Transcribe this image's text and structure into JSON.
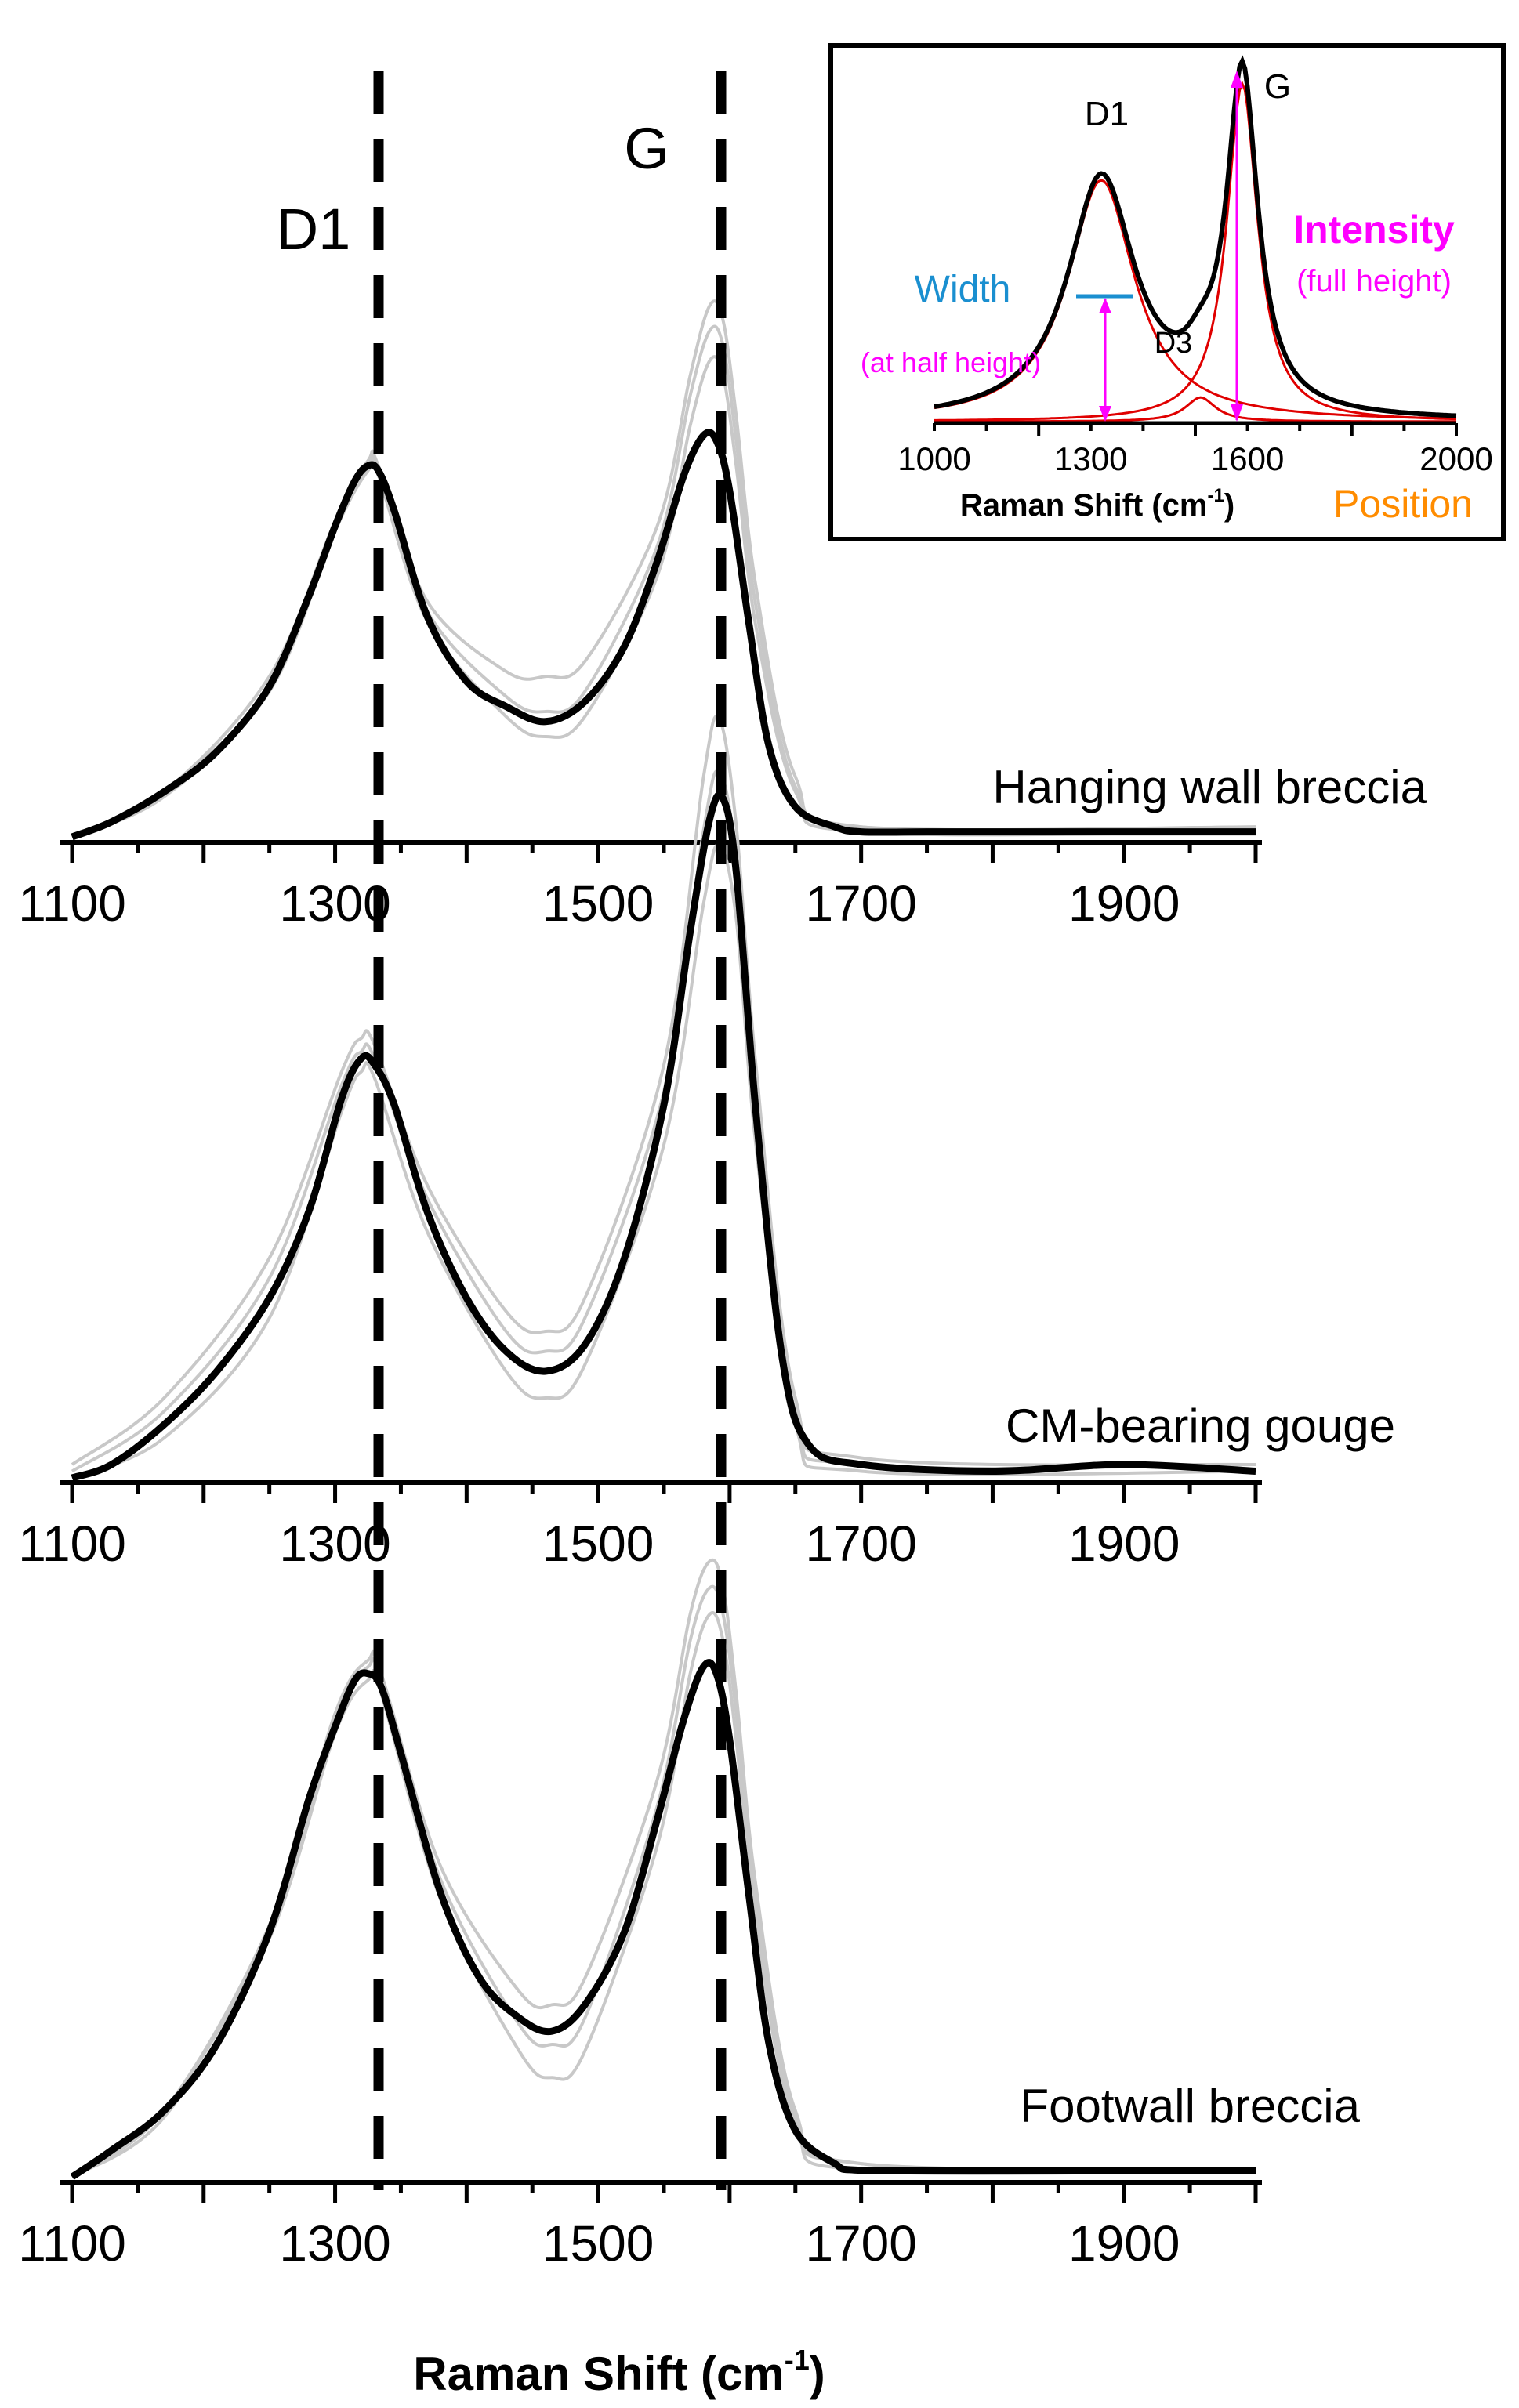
{
  "chart_data": [
    {
      "type": "line",
      "panel": "hanging-wall",
      "xlim": [
        1100,
        2000
      ],
      "xticks": [
        1100,
        1300,
        1500,
        1700,
        1900
      ],
      "sample_label": "Hanging wall breccia",
      "peak_labels": [
        "D1",
        "G"
      ],
      "peak_positions": [
        1330,
        1590
      ],
      "series": [
        {
          "role": "mean",
          "color": "#000000",
          "x": [
            1100,
            1130,
            1170,
            1210,
            1250,
            1280,
            1300,
            1315,
            1325,
            1333,
            1345,
            1370,
            1400,
            1430,
            1460,
            1490,
            1520,
            1545,
            1565,
            1580,
            1590,
            1600,
            1615,
            1630,
            1650,
            1680,
            1700,
            1750,
            1800,
            1900,
            2000
          ],
          "y": [
            0.0,
            0.03,
            0.09,
            0.17,
            0.3,
            0.48,
            0.62,
            0.71,
            0.74,
            0.73,
            0.65,
            0.44,
            0.31,
            0.26,
            0.23,
            0.27,
            0.38,
            0.55,
            0.72,
            0.8,
            0.79,
            0.69,
            0.42,
            0.18,
            0.06,
            0.02,
            0.01,
            0.01,
            0.01,
            0.01,
            0.01
          ]
        },
        {
          "role": "spectrum",
          "color": "#c8c8c8",
          "x": [
            1100,
            1170,
            1250,
            1300,
            1325,
            1333,
            1370,
            1430,
            1460,
            1490,
            1545,
            1570,
            1585,
            1595,
            1605,
            1620,
            1650,
            1700,
            2000
          ],
          "y": [
            0.0,
            0.09,
            0.32,
            0.63,
            0.75,
            0.74,
            0.47,
            0.33,
            0.32,
            0.35,
            0.62,
            0.92,
            1.06,
            1.03,
            0.84,
            0.5,
            0.12,
            0.02,
            0.02
          ]
        },
        {
          "role": "spectrum",
          "color": "#c8c8c8",
          "x": [
            1100,
            1170,
            1250,
            1300,
            1325,
            1333,
            1370,
            1430,
            1460,
            1490,
            1545,
            1570,
            1585,
            1595,
            1605,
            1620,
            1650,
            1700,
            2000
          ],
          "y": [
            0.0,
            0.08,
            0.29,
            0.61,
            0.73,
            0.72,
            0.43,
            0.24,
            0.2,
            0.24,
            0.52,
            0.82,
            0.95,
            0.92,
            0.74,
            0.42,
            0.09,
            0.01,
            0.01
          ]
        },
        {
          "role": "spectrum",
          "color": "#c8c8c8",
          "x": [
            1100,
            1170,
            1250,
            1300,
            1325,
            1333,
            1370,
            1430,
            1460,
            1490,
            1545,
            1570,
            1585,
            1595,
            1605,
            1620,
            1650,
            1700,
            2000
          ],
          "y": [
            0.0,
            0.09,
            0.3,
            0.62,
            0.74,
            0.73,
            0.45,
            0.28,
            0.25,
            0.29,
            0.58,
            0.88,
            1.01,
            0.98,
            0.79,
            0.46,
            0.1,
            0.02,
            0.02
          ]
        }
      ]
    },
    {
      "type": "line",
      "panel": "gouge",
      "xlim": [
        1100,
        2000
      ],
      "xticks": [
        1100,
        1300,
        1500,
        1700,
        1900
      ],
      "sample_label": "CM-bearing gouge",
      "series": [
        {
          "role": "mean",
          "color": "#000000",
          "x": [
            1100,
            1130,
            1170,
            1210,
            1250,
            1280,
            1305,
            1320,
            1330,
            1345,
            1370,
            1400,
            1430,
            1460,
            1490,
            1520,
            1550,
            1570,
            1585,
            1595,
            1605,
            1620,
            1640,
            1660,
            1700,
            1800,
            1900,
            2000
          ],
          "y": [
            0.0,
            0.02,
            0.08,
            0.16,
            0.27,
            0.4,
            0.57,
            0.63,
            0.62,
            0.56,
            0.4,
            0.27,
            0.19,
            0.16,
            0.2,
            0.33,
            0.56,
            0.82,
            0.99,
            1.02,
            0.91,
            0.55,
            0.18,
            0.05,
            0.02,
            0.01,
            0.02,
            0.01
          ]
        },
        {
          "role": "spectrum",
          "color": "#c8c8c8",
          "x": [
            1100,
            1170,
            1250,
            1305,
            1320,
            1330,
            1370,
            1430,
            1460,
            1490,
            1550,
            1580,
            1592,
            1605,
            1620,
            1650,
            1700,
            2000
          ],
          "y": [
            0.02,
            0.12,
            0.33,
            0.61,
            0.66,
            0.65,
            0.44,
            0.25,
            0.22,
            0.27,
            0.62,
            1.05,
            1.14,
            0.98,
            0.62,
            0.12,
            0.03,
            0.02
          ]
        },
        {
          "role": "spectrum",
          "color": "#c8c8c8",
          "x": [
            1100,
            1170,
            1250,
            1305,
            1320,
            1330,
            1370,
            1430,
            1460,
            1490,
            1550,
            1580,
            1592,
            1605,
            1620,
            1650,
            1700,
            2000
          ],
          "y": [
            0.0,
            0.06,
            0.24,
            0.55,
            0.61,
            0.6,
            0.37,
            0.16,
            0.12,
            0.17,
            0.5,
            0.86,
            0.95,
            0.84,
            0.5,
            0.08,
            0.01,
            0.01
          ]
        },
        {
          "role": "spectrum",
          "color": "#c8c8c8",
          "x": [
            1100,
            1170,
            1250,
            1305,
            1320,
            1330,
            1370,
            1430,
            1460,
            1490,
            1550,
            1580,
            1592,
            1605,
            1620,
            1650,
            1700,
            2000
          ],
          "y": [
            0.01,
            0.1,
            0.3,
            0.59,
            0.64,
            0.63,
            0.42,
            0.22,
            0.19,
            0.24,
            0.58,
            0.97,
            1.06,
            0.93,
            0.57,
            0.1,
            0.02,
            0.02
          ]
        }
      ]
    },
    {
      "type": "line",
      "panel": "footwall",
      "xlim": [
        1100,
        2000
      ],
      "xticks": [
        1100,
        1300,
        1500,
        1700,
        1900
      ],
      "sample_label": "Footwall breccia",
      "xlabel": "Raman Shift (cm",
      "xlabel_sup": "-1",
      "xlabel_end": ")",
      "series": [
        {
          "role": "mean",
          "color": "#000000",
          "x": [
            1100,
            1130,
            1170,
            1210,
            1250,
            1280,
            1300,
            1315,
            1325,
            1335,
            1350,
            1380,
            1410,
            1440,
            1465,
            1490,
            1520,
            1545,
            1565,
            1580,
            1590,
            1600,
            1615,
            1630,
            1650,
            1680,
            1700,
            1800,
            1900,
            2000
          ],
          "y": [
            0.0,
            0.04,
            0.1,
            0.2,
            0.37,
            0.57,
            0.68,
            0.75,
            0.76,
            0.74,
            0.64,
            0.43,
            0.3,
            0.24,
            0.22,
            0.26,
            0.37,
            0.54,
            0.69,
            0.77,
            0.76,
            0.66,
            0.42,
            0.2,
            0.07,
            0.02,
            0.01,
            0.01,
            0.01,
            0.01
          ]
        },
        {
          "role": "spectrum",
          "color": "#c8c8c8",
          "x": [
            1100,
            1170,
            1250,
            1300,
            1325,
            1335,
            1380,
            1440,
            1465,
            1490,
            1545,
            1570,
            1585,
            1595,
            1605,
            1620,
            1650,
            1700,
            2000
          ],
          "y": [
            0.0,
            0.1,
            0.38,
            0.7,
            0.78,
            0.76,
            0.47,
            0.28,
            0.26,
            0.3,
            0.6,
            0.85,
            0.93,
            0.89,
            0.73,
            0.44,
            0.1,
            0.02,
            0.01
          ]
        },
        {
          "role": "spectrum",
          "color": "#c8c8c8",
          "x": [
            1100,
            1170,
            1250,
            1300,
            1325,
            1335,
            1380,
            1440,
            1465,
            1490,
            1545,
            1570,
            1585,
            1595,
            1605,
            1620,
            1650,
            1700,
            2000
          ],
          "y": [
            0.0,
            0.09,
            0.36,
            0.67,
            0.75,
            0.73,
            0.42,
            0.19,
            0.15,
            0.19,
            0.5,
            0.76,
            0.85,
            0.81,
            0.66,
            0.38,
            0.08,
            0.01,
            0.01
          ]
        },
        {
          "role": "spectrum",
          "color": "#c8c8c8",
          "x": [
            1100,
            1170,
            1250,
            1300,
            1325,
            1335,
            1380,
            1440,
            1465,
            1490,
            1545,
            1570,
            1585,
            1595,
            1605,
            1620,
            1650,
            1700,
            2000
          ],
          "y": [
            0.0,
            0.1,
            0.37,
            0.69,
            0.77,
            0.75,
            0.45,
            0.23,
            0.2,
            0.24,
            0.56,
            0.81,
            0.89,
            0.85,
            0.7,
            0.41,
            0.09,
            0.02,
            0.01
          ]
        }
      ]
    },
    {
      "type": "line",
      "panel": "inset",
      "xlim": [
        1000,
        2000
      ],
      "xticks": [
        1000,
        1300,
        1600,
        2000
      ],
      "xlabel": "Raman Shift (cm",
      "xlabel_sup": "-1",
      "xlabel_end": ")",
      "annotations": {
        "d1": "D1",
        "g": "G",
        "d3": "D3",
        "width": "Width",
        "half_height": "(at half height)",
        "intensity": "Intensity",
        "full_height": "(full height)",
        "position": "Position"
      },
      "colors": {
        "width": "#1a8fd0",
        "intensity": "#ff00ff",
        "position": "#ff8c00",
        "fit": "#e00000"
      }
    }
  ]
}
